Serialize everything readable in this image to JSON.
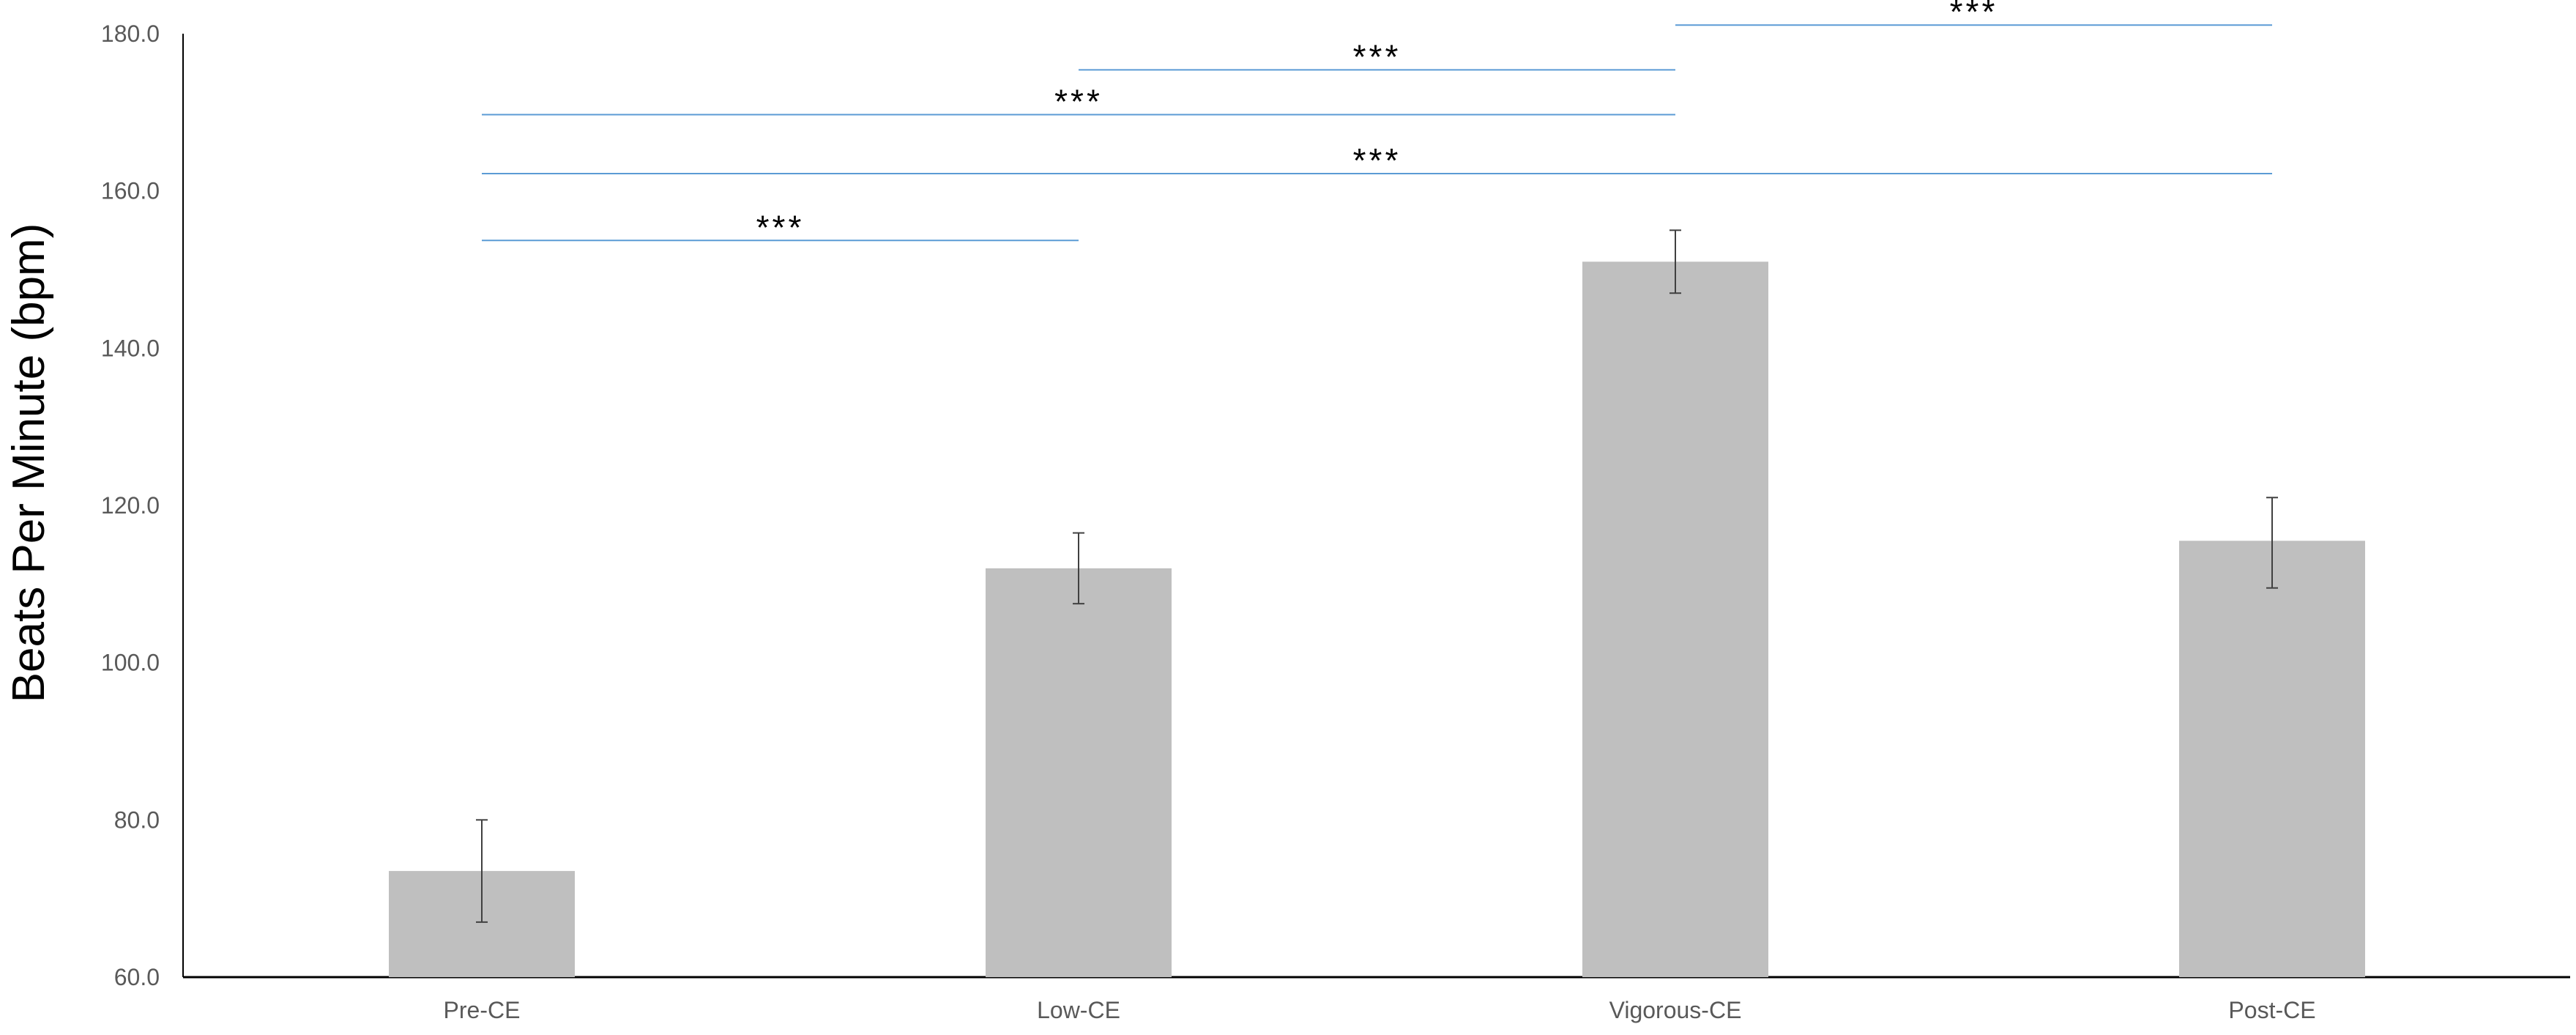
{
  "chart_data": {
    "type": "bar",
    "title": "",
    "xlabel": "",
    "ylabel": "Beats Per Minute (bpm)",
    "categories": [
      "Pre-CE",
      "Low-CE",
      "Vigorous-CE",
      "Post-CE"
    ],
    "values": [
      73.5,
      112.0,
      151.0,
      115.5
    ],
    "error_low": [
      67.0,
      107.5,
      147.0,
      109.5
    ],
    "error_high": [
      80.0,
      116.5,
      155.0,
      121.0
    ],
    "ylim": [
      60,
      180
    ],
    "yticks": [
      60,
      80,
      100,
      120,
      140,
      160,
      180
    ],
    "ytick_labels": [
      "60.0",
      "80.0",
      "100.0",
      "120.0",
      "140.0",
      "160.0",
      "180.0"
    ],
    "grid": false,
    "legend": "none",
    "significance": [
      {
        "label": "***",
        "from": "Pre-CE",
        "to": "Low-CE",
        "y": 153.7
      },
      {
        "label": "***",
        "from": "Pre-CE",
        "to": "Post-CE",
        "y": 162.2
      },
      {
        "label": "***",
        "from": "Pre-CE",
        "to": "Vigorous-CE",
        "y": 169.7
      },
      {
        "label": "***",
        "from": "Low-CE",
        "to": "Vigorous-CE",
        "y": 175.4
      },
      {
        "label": "***",
        "from": "Vigorous-CE",
        "to": "Post-CE",
        "y": 181.1
      }
    ],
    "colors": {
      "bar": "#bfbfbf",
      "error_bar": "#404040",
      "axis": "#000000",
      "significance_line": "#5b9bd5"
    }
  }
}
